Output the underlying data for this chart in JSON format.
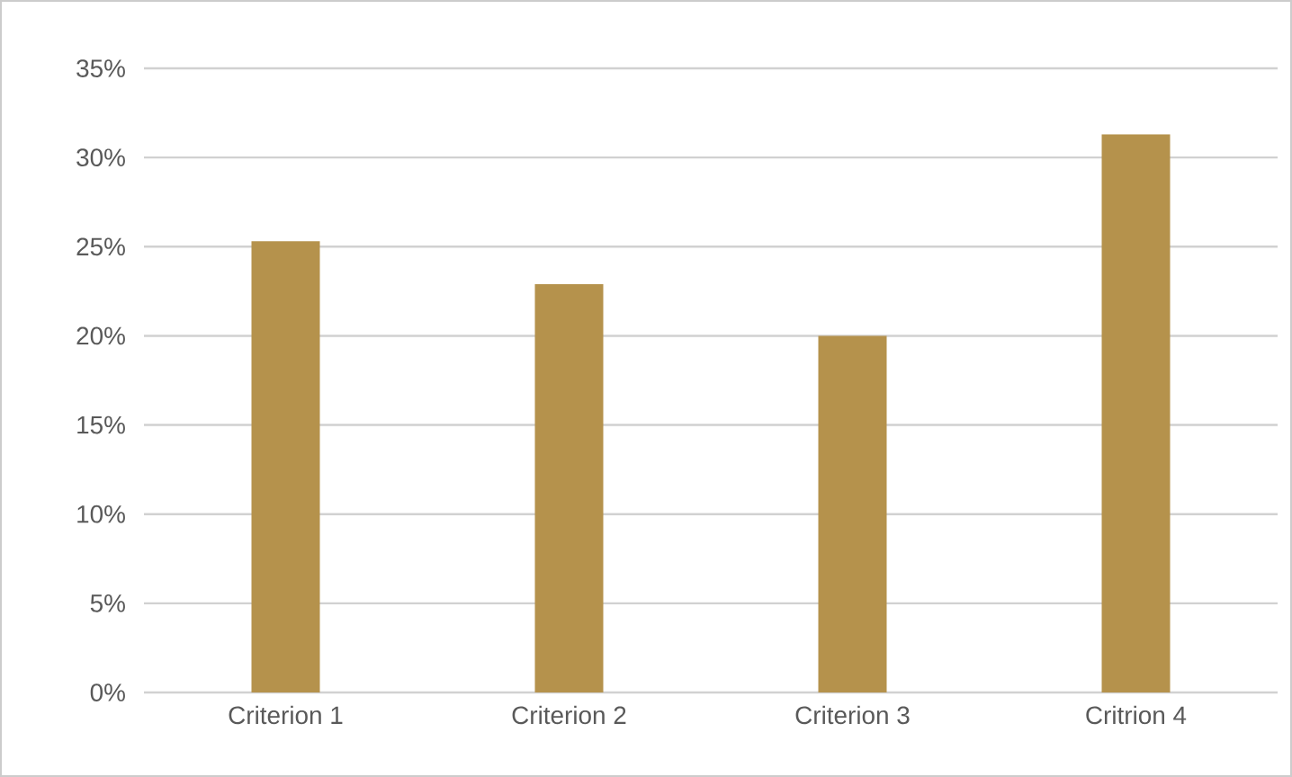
{
  "chart_data": {
    "type": "bar",
    "categories": [
      "Criterion 1",
      "Criterion 2",
      "Criterion 3",
      "Critrion 4"
    ],
    "values": [
      25.3,
      22.9,
      20.0,
      31.3
    ],
    "color": "#b5924c",
    "ylim": [
      0,
      35
    ],
    "yticks": [
      {
        "value": 0,
        "label": "0%"
      },
      {
        "value": 5,
        "label": "5%"
      },
      {
        "value": 10,
        "label": "10%"
      },
      {
        "value": 15,
        "label": "15%"
      },
      {
        "value": 20,
        "label": "20%"
      },
      {
        "value": 25,
        "label": "25%"
      },
      {
        "value": 30,
        "label": "30%"
      },
      {
        "value": 35,
        "label": "35%"
      }
    ],
    "grid": "y"
  }
}
